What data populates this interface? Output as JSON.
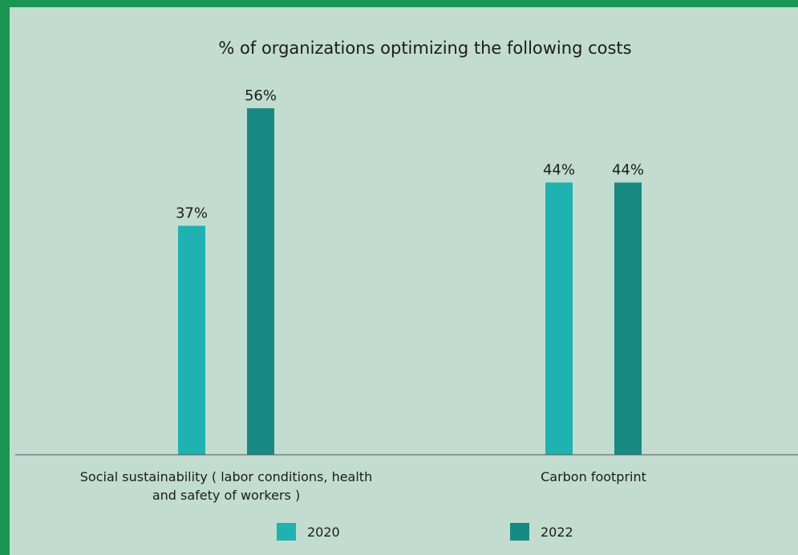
{
  "chart_data": {
    "type": "bar",
    "title": "% of organizations optimizing the following costs",
    "categories": [
      [
        "Social sustainability ( labor conditions, health",
        "and safety of workers )"
      ],
      [
        "Carbon footprint"
      ]
    ],
    "series": [
      {
        "name": "2020",
        "values": [
          37,
          44
        ],
        "labels": [
          "37%",
          "44%"
        ],
        "color": "#20b2b0"
      },
      {
        "name": "2022",
        "values": [
          56,
          44
        ],
        "labels": [
          "56%",
          "44%"
        ],
        "color": "#168a82"
      }
    ],
    "ylim": [
      0,
      60
    ],
    "xlabel": "",
    "ylabel": "",
    "grid": false,
    "legend": "bottom"
  }
}
